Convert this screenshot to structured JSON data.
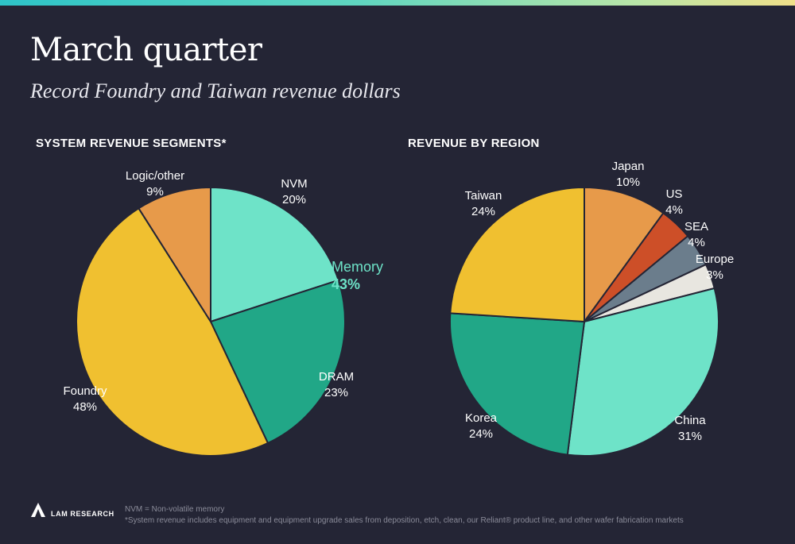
{
  "page": {
    "title": "March quarter",
    "subtitle": "Record Foundry and Taiwan revenue dollars"
  },
  "chart_data": [
    {
      "type": "pie",
      "title": "SYSTEM REVENUE SEGMENTS*",
      "slices": [
        {
          "label": "NVM",
          "value": 20,
          "display": "20%",
          "color": "#6ee3c8"
        },
        {
          "label": "DRAM",
          "value": 23,
          "display": "23%",
          "color": "#21a787"
        },
        {
          "label": "Foundry",
          "value": 48,
          "display": "48%",
          "color": "#f0c030"
        },
        {
          "label": "Logic/other",
          "value": 9,
          "display": "9%",
          "color": "#e79a4a"
        }
      ],
      "annotation": {
        "label": "Memory",
        "value": "43%",
        "color": "#6ee3c8"
      }
    },
    {
      "type": "pie",
      "title": "REVENUE BY REGION",
      "slices": [
        {
          "label": "Japan",
          "value": 10,
          "display": "10%",
          "color": "#e79a4a"
        },
        {
          "label": "US",
          "value": 4,
          "display": "4%",
          "color": "#cd4f28"
        },
        {
          "label": "SEA",
          "value": 4,
          "display": "4%",
          "color": "#6b7d8c"
        },
        {
          "label": "Europe",
          "value": 3,
          "display": "3%",
          "color": "#e8e6e0"
        },
        {
          "label": "China",
          "value": 31,
          "display": "31%",
          "color": "#6ee3c8"
        },
        {
          "label": "Korea",
          "value": 24,
          "display": "24%",
          "color": "#21a787"
        },
        {
          "label": "Taiwan",
          "value": 24,
          "display": "24%",
          "color": "#f0c030"
        }
      ]
    }
  ],
  "footer": {
    "logo_text": "LAM RESEARCH",
    "note1": "NVM = Non-volatile memory",
    "note2": "*System revenue includes equipment and equipment upgrade sales from deposition, etch, clean, our Reliant® product line, and other wafer fabrication markets"
  },
  "colors": {
    "background": "#242535",
    "slice_border": "#242535"
  }
}
